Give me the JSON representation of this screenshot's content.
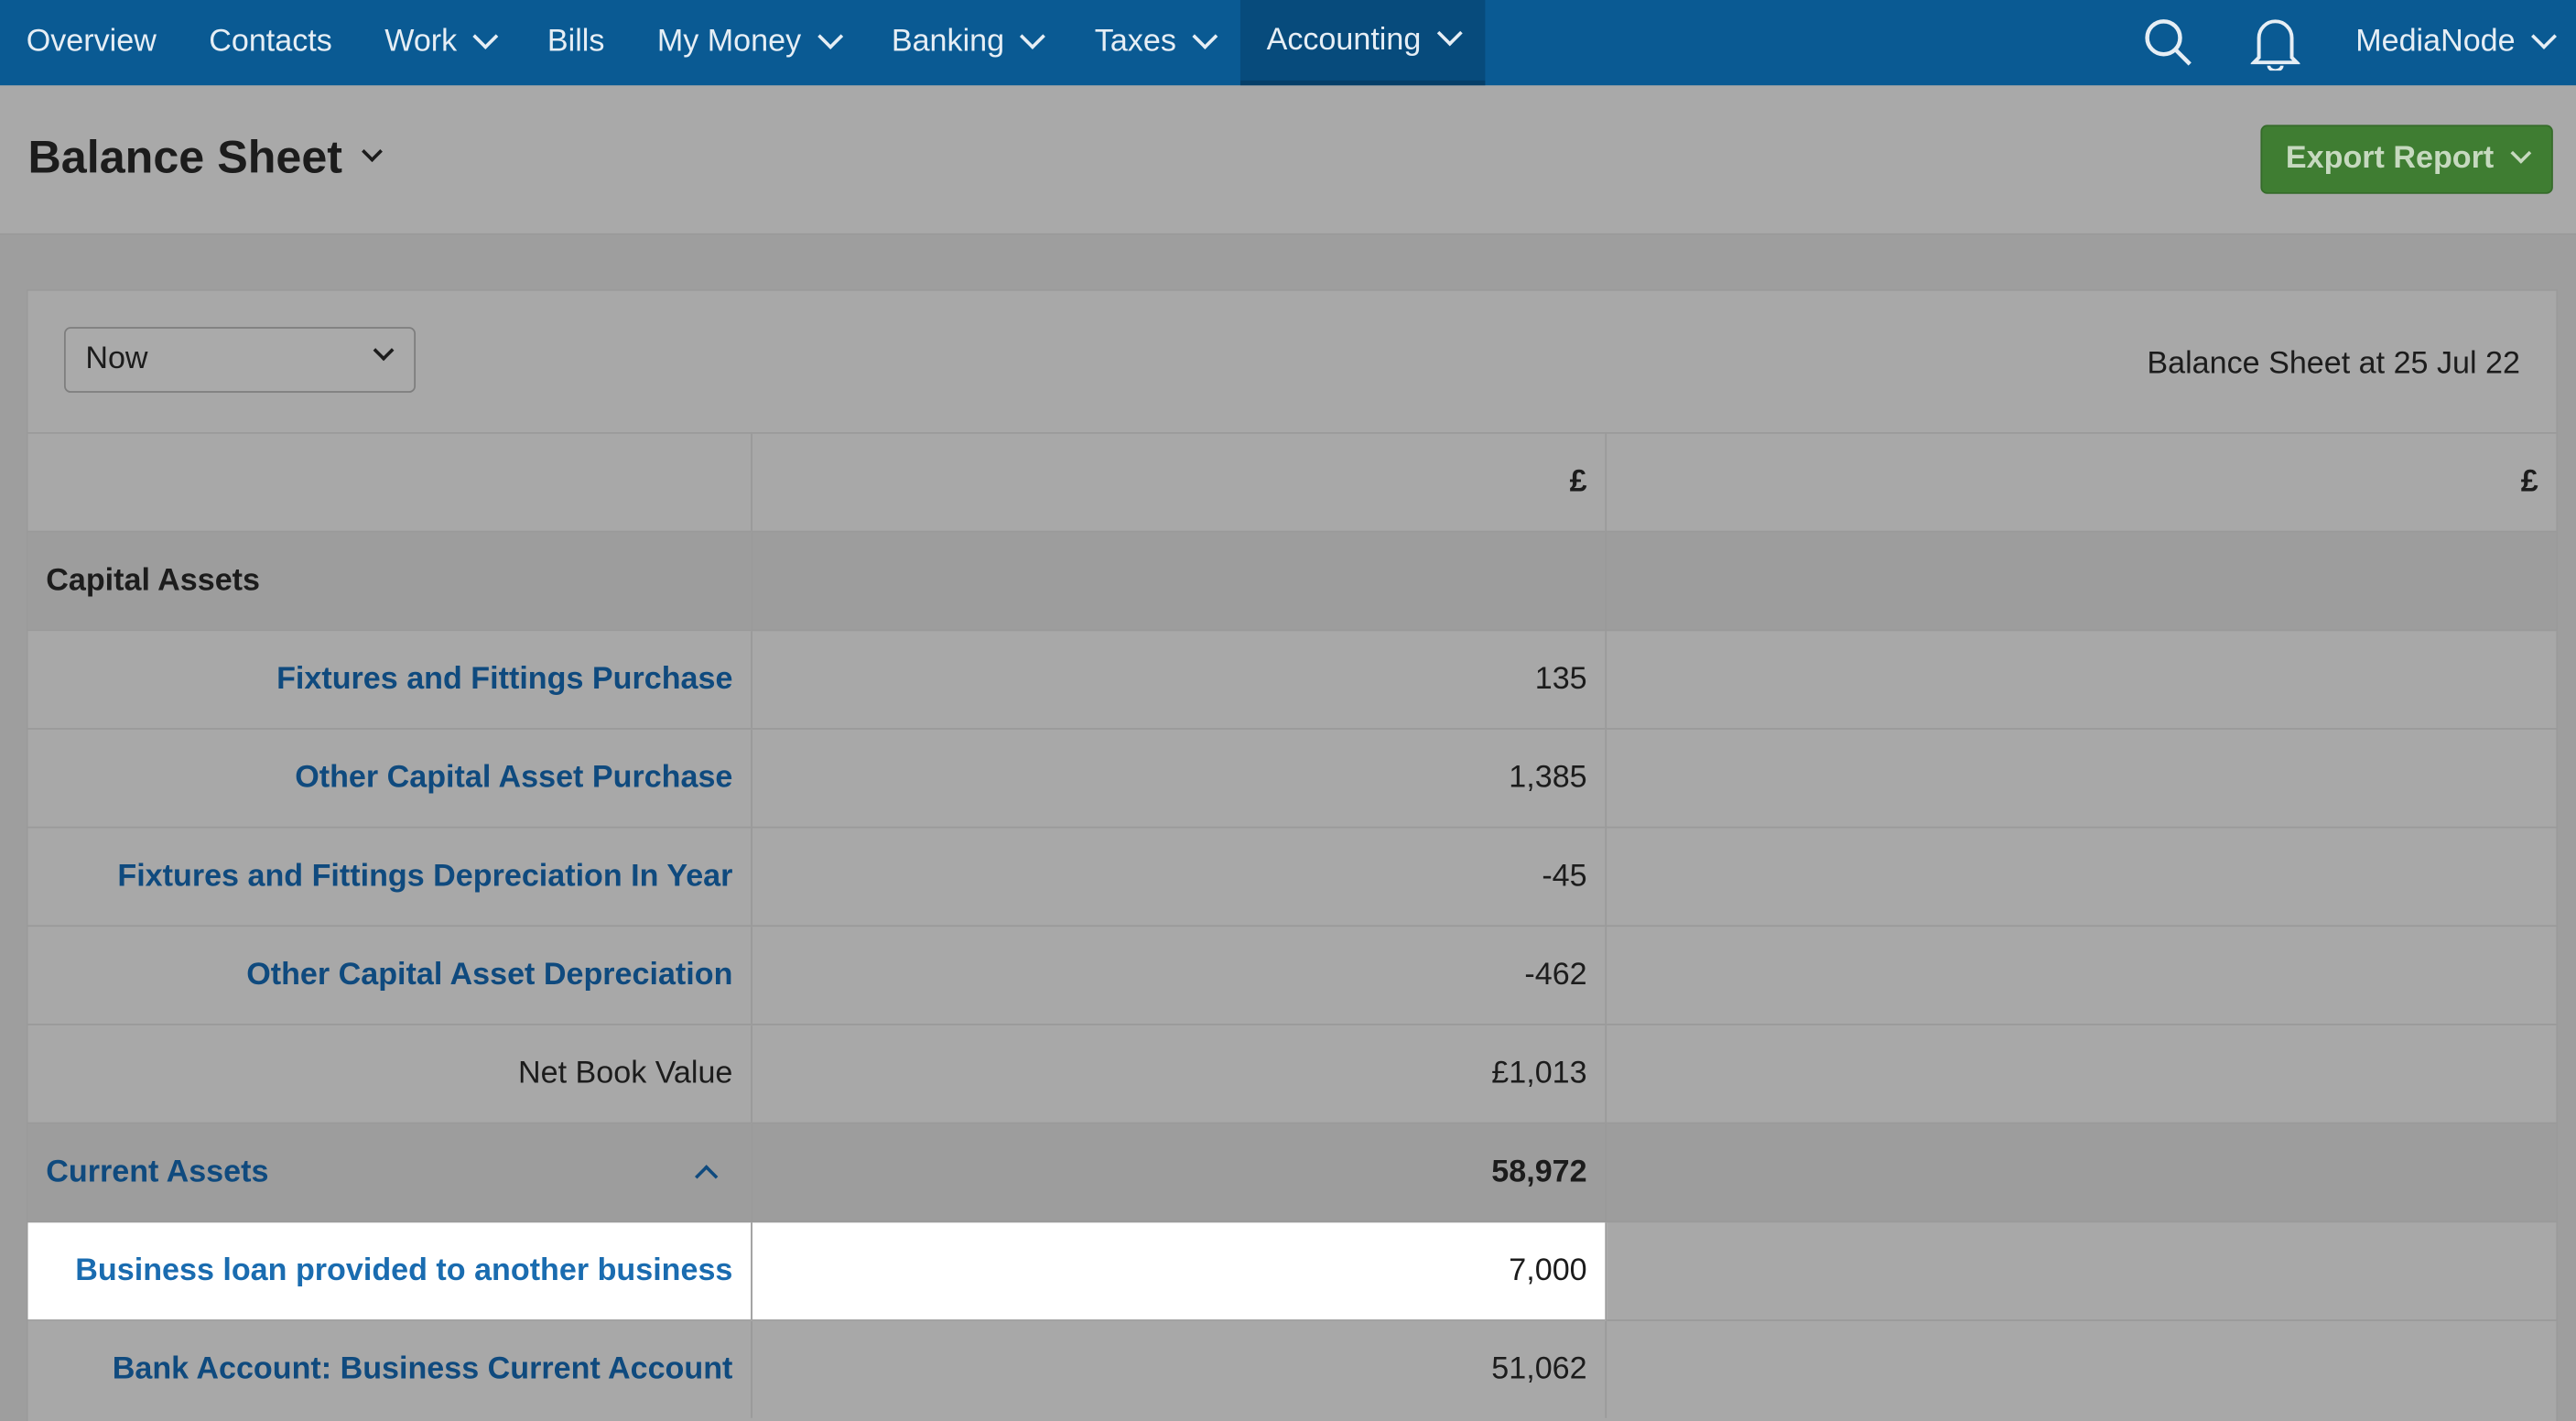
{
  "nav": {
    "items": [
      "Overview",
      "Contacts",
      "Work",
      "Bills",
      "My Money",
      "Banking",
      "Taxes",
      "Accounting"
    ],
    "user": "MediaNode"
  },
  "header": {
    "title": "Balance Sheet",
    "export": "Export Report"
  },
  "filter": {
    "period": "Now",
    "caption": "Balance Sheet at 25 Jul 22"
  },
  "table": {
    "columns": [
      "£",
      "£"
    ],
    "rows": [
      {
        "label": "Capital Assets",
        "kind": "section"
      },
      {
        "label": "Fixtures and Fittings Purchase",
        "value": "135",
        "kind": "link"
      },
      {
        "label": "Other Capital Asset Purchase",
        "value": "1,385",
        "kind": "link"
      },
      {
        "label": "Fixtures and Fittings Depreciation In Year",
        "value": "-45",
        "kind": "link"
      },
      {
        "label": "Other Capital Asset Depreciation",
        "value": "-462",
        "kind": "link"
      },
      {
        "label": "Net Book Value",
        "value": "£1,013",
        "kind": "total"
      },
      {
        "label": "Current Assets",
        "value": "58,972",
        "kind": "section-link"
      },
      {
        "label": "Business loan provided to another business",
        "value": "7,000",
        "kind": "highlight"
      },
      {
        "label": "Bank Account: Business Current Account",
        "value": "51,062",
        "kind": "link"
      }
    ]
  }
}
